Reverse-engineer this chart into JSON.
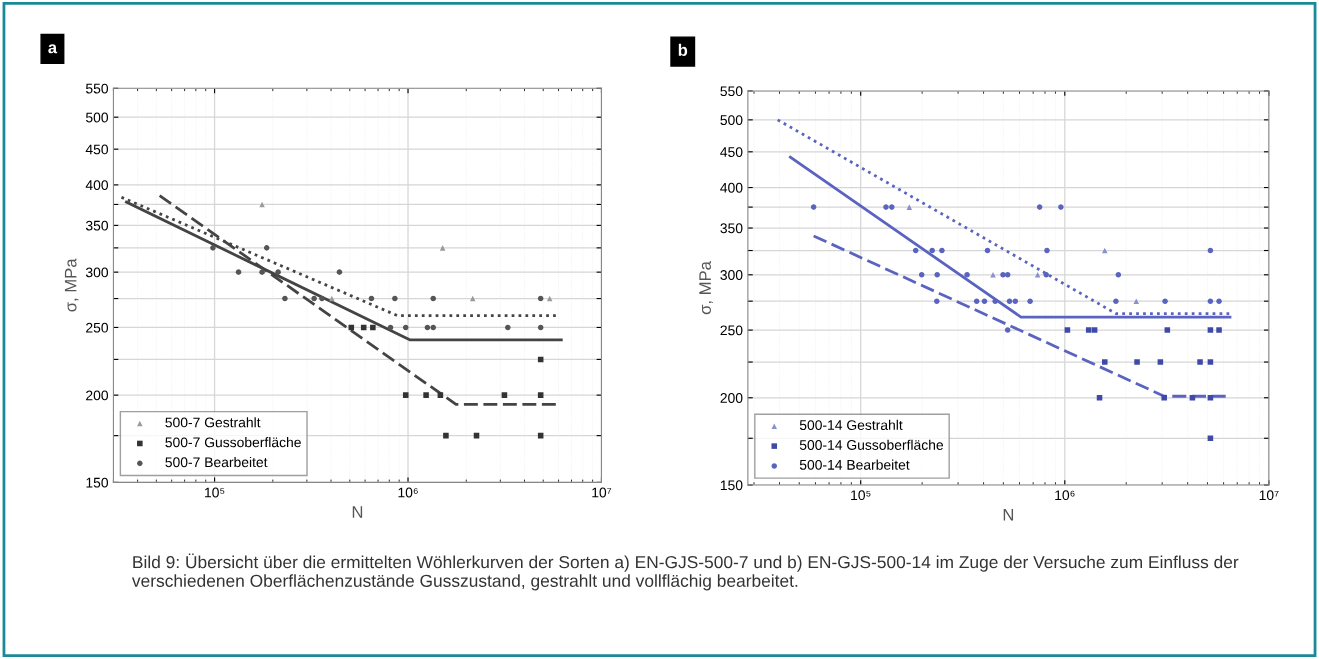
{
  "chart_data": [
    {
      "type": "scatter",
      "title": "a",
      "xlabel": "N",
      "ylabel": "σ, MPa",
      "log": "xy",
      "grid": true,
      "legend": "lower left",
      "xlim": [
        30000,
        10000000
      ],
      "xticks": [
        {
          "value": 100000,
          "label": "10⁵"
        },
        {
          "value": 1000000,
          "label": "10⁶"
        },
        {
          "value": 10000000,
          "label": "10⁷"
        }
      ],
      "ylim": [
        150,
        550
      ],
      "yticks": [
        150,
        {
          "value": 175,
          "label": null
        },
        200,
        {
          "value": 225,
          "label": null
        },
        250,
        {
          "value": 275,
          "label": null
        },
        300,
        {
          "value": 325,
          "label": null
        },
        350,
        {
          "value": 375,
          "label": null
        },
        400,
        450,
        500,
        550
      ],
      "annotations": [
        "Bild 9: Übersicht über die ermittelten Wöhlerkurven der Sorten a) EN-GJS-500-7 und b) EN-GJS-500-14 im Zuge der Versuche zum Einfluss der verschiedenen Oberflächenzustände Gusszustand, gestrahlt und vollflächig bearbeitet."
      ],
      "series": [
        {
          "name": "500-7 Gestrahlt",
          "color": "#9a9a9a",
          "marker": "triangle",
          "x": [
            176000,
            1510000,
            5400000,
            2160000,
            404000
          ],
          "values": [
            375,
            325,
            275,
            275,
            275
          ]
        },
        {
          "name": "500-7 Gussoberfläche",
          "color": "#333333",
          "marker": "square",
          "x": [
            973000,
            1240000,
            1470000,
            3150000,
            4850000,
            1570000,
            2260000,
            4850000,
            4850000,
            509000,
            590000,
            658000
          ],
          "values": [
            200,
            200,
            200,
            200,
            200,
            175,
            175,
            175,
            225,
            250,
            250,
            250
          ]
        },
        {
          "name": "500-7 Bearbeitet",
          "color": "#555555",
          "marker": "circle",
          "x": [
            98000,
            186000,
            133000,
            176000,
            213000,
            442000,
            231000,
            327000,
            359000,
            647000,
            855000,
            1350000,
            4850000,
            812000,
            973000,
            1260000,
            1350000,
            3280000,
            4850000
          ],
          "values": [
            325,
            325,
            300,
            300,
            300,
            300,
            275,
            275,
            275,
            275,
            275,
            275,
            275,
            250,
            250,
            250,
            250,
            250,
            250
          ]
        },
        {
          "type": "line",
          "color": "#444444",
          "line_style": "dotted",
          "x": [
            33000,
            880000,
            5970000
          ],
          "values": [
            384,
            260,
            260
          ]
        },
        {
          "type": "line",
          "color": "#444444",
          "line_style": "solid",
          "x": [
            35000,
            1020000,
            6200000
          ],
          "values": [
            378,
            240,
            240
          ]
        },
        {
          "type": "line",
          "color": "#444444",
          "line_style": "dashed",
          "x": [
            52000,
            1770000,
            5970000
          ],
          "values": [
            386,
            194,
            194
          ]
        }
      ]
    },
    {
      "type": "scatter",
      "title": "b",
      "xlabel": "N",
      "ylabel": "σ, MPa",
      "log": "xy",
      "grid": true,
      "legend": "lower left",
      "xlim": [
        28000,
        10000000
      ],
      "xticks": [
        {
          "value": 100000,
          "label": "10⁵"
        },
        {
          "value": 1000000,
          "label": "10⁶"
        },
        {
          "value": 10000000,
          "label": "10⁷"
        }
      ],
      "ylim": [
        150,
        550
      ],
      "yticks": [
        150,
        {
          "value": 175,
          "label": null
        },
        200,
        {
          "value": 225,
          "label": null
        },
        250,
        {
          "value": 275,
          "label": null
        },
        300,
        {
          "value": 325,
          "label": null
        },
        350,
        {
          "value": 375,
          "label": null
        },
        400,
        450,
        500,
        550
      ],
      "series": [
        {
          "name": "500-14 Gestrahlt",
          "color": "#8a90cc",
          "marker": "triangle",
          "x": [
            173000,
            1570000,
            445000,
            736000,
            2240000
          ],
          "values": [
            375,
            325,
            300,
            300,
            275
          ]
        },
        {
          "name": "500-14 Gussoberfläche",
          "color": "#3f4aa8",
          "marker": "square",
          "x": [
            1480000,
            3070000,
            4220000,
            5170000,
            5170000,
            1570000,
            2260000,
            2940000,
            4600000,
            5170000,
            1030000,
            1310000,
            1400000,
            3180000,
            5170000,
            5700000
          ],
          "values": [
            200,
            200,
            200,
            200,
            175,
            225,
            225,
            225,
            225,
            225,
            250,
            250,
            250,
            250,
            250,
            250
          ]
        },
        {
          "name": "500-14 Bearbeitet",
          "color": "#5a64c0",
          "marker": "circle",
          "x": [
            58800,
            133000,
            142000,
            753000,
            957000,
            186000,
            224000,
            250000,
            418000,
            818000,
            5170000,
            199000,
            237000,
            332000,
            498000,
            525000,
            811000,
            1830000,
            236000,
            370000,
            404000,
            456000,
            536000,
            572000,
            676000,
            1780000,
            3100000,
            5170000,
            5700000,
            525000
          ],
          "values": [
            375,
            375,
            375,
            375,
            375,
            325,
            325,
            325,
            325,
            325,
            325,
            300,
            300,
            300,
            300,
            300,
            300,
            300,
            275,
            275,
            275,
            275,
            275,
            275,
            275,
            275,
            275,
            275,
            275,
            250
          ]
        },
        {
          "type": "line",
          "color": "#5a64c0",
          "line_style": "dotted",
          "x": [
            39200,
            1780000,
            6580000
          ],
          "values": [
            500,
            264,
            264
          ]
        },
        {
          "type": "line",
          "color": "#5a64c0",
          "line_style": "solid",
          "x": [
            45200,
            610000,
            6450000
          ],
          "values": [
            442,
            261,
            261
          ]
        },
        {
          "type": "line",
          "color": "#5a64c0",
          "line_style": "dashed",
          "x": [
            58800,
            3070000,
            6300000
          ],
          "values": [
            341,
            201,
            201
          ]
        }
      ]
    }
  ]
}
